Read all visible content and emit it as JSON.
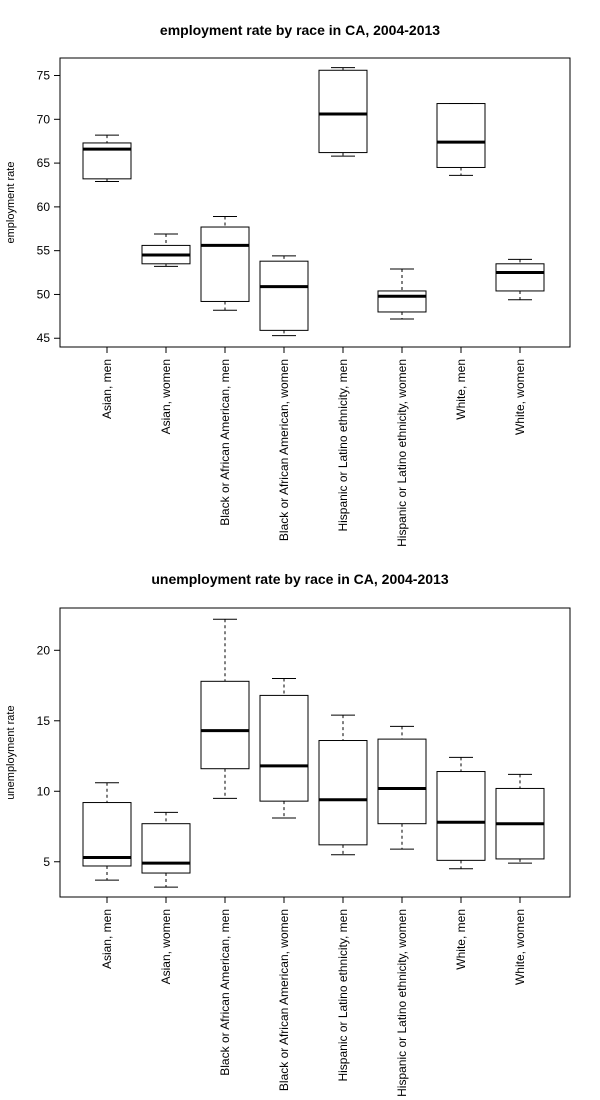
{
  "chart_data": [
    {
      "type": "box",
      "title": "employment rate by race in CA, 2004-2013",
      "xlabel": "",
      "ylabel": "employment rate",
      "ylim": [
        44,
        77
      ],
      "yticks": [
        45,
        50,
        55,
        60,
        65,
        70,
        75
      ],
      "grid": false,
      "categories": [
        "Asian, men",
        "Asian, women",
        "Black or African American, men",
        "Black or African American, women",
        "Hispanic or Latino ethnicity, men",
        "Hispanic or Latino ethnicity, women",
        "White, men",
        "White, women"
      ],
      "boxes": [
        {
          "min": 62.9,
          "q1": 63.2,
          "median": 66.6,
          "q3": 67.3,
          "max": 68.2
        },
        {
          "min": 53.2,
          "q1": 53.5,
          "median": 54.5,
          "q3": 55.6,
          "max": 56.9
        },
        {
          "min": 48.2,
          "q1": 49.2,
          "median": 55.6,
          "q3": 57.7,
          "max": 58.9
        },
        {
          "min": 45.3,
          "q1": 45.9,
          "median": 50.9,
          "q3": 53.8,
          "max": 54.4
        },
        {
          "min": 65.8,
          "q1": 66.2,
          "median": 70.6,
          "q3": 75.6,
          "max": 75.9
        },
        {
          "min": 47.2,
          "q1": 48.0,
          "median": 49.8,
          "q3": 50.4,
          "max": 52.9
        },
        {
          "min": 63.6,
          "q1": 64.5,
          "median": 67.4,
          "q3": 71.8,
          "max": 71.8
        },
        {
          "min": 49.4,
          "q1": 50.4,
          "median": 52.5,
          "q3": 53.5,
          "max": 54.0
        }
      ]
    },
    {
      "type": "box",
      "title": "unemployment rate by race in CA, 2004-2013",
      "xlabel": "",
      "ylabel": "unemployment rate",
      "ylim": [
        2.5,
        23
      ],
      "yticks": [
        5,
        10,
        15,
        20
      ],
      "grid": false,
      "categories": [
        "Asian, men",
        "Asian, women",
        "Black or African American, men",
        "Black or African American, women",
        "Hispanic or Latino ethnicity, men",
        "Hispanic or Latino ethnicity, women",
        "White, men",
        "White, women"
      ],
      "boxes": [
        {
          "min": 3.7,
          "q1": 4.7,
          "median": 5.3,
          "q3": 9.2,
          "max": 10.6
        },
        {
          "min": 3.2,
          "q1": 4.2,
          "median": 4.9,
          "q3": 7.7,
          "max": 8.5
        },
        {
          "min": 9.5,
          "q1": 11.6,
          "median": 14.3,
          "q3": 17.8,
          "max": 22.2
        },
        {
          "min": 8.1,
          "q1": 9.3,
          "median": 11.8,
          "q3": 16.8,
          "max": 18.0
        },
        {
          "min": 5.5,
          "q1": 6.2,
          "median": 9.4,
          "q3": 13.6,
          "max": 15.4
        },
        {
          "min": 5.9,
          "q1": 7.7,
          "median": 10.2,
          "q3": 13.7,
          "max": 14.6
        },
        {
          "min": 4.5,
          "q1": 5.1,
          "median": 7.8,
          "q3": 11.4,
          "max": 12.4
        },
        {
          "min": 4.9,
          "q1": 5.2,
          "median": 7.7,
          "q3": 10.2,
          "max": 11.2
        }
      ]
    }
  ]
}
